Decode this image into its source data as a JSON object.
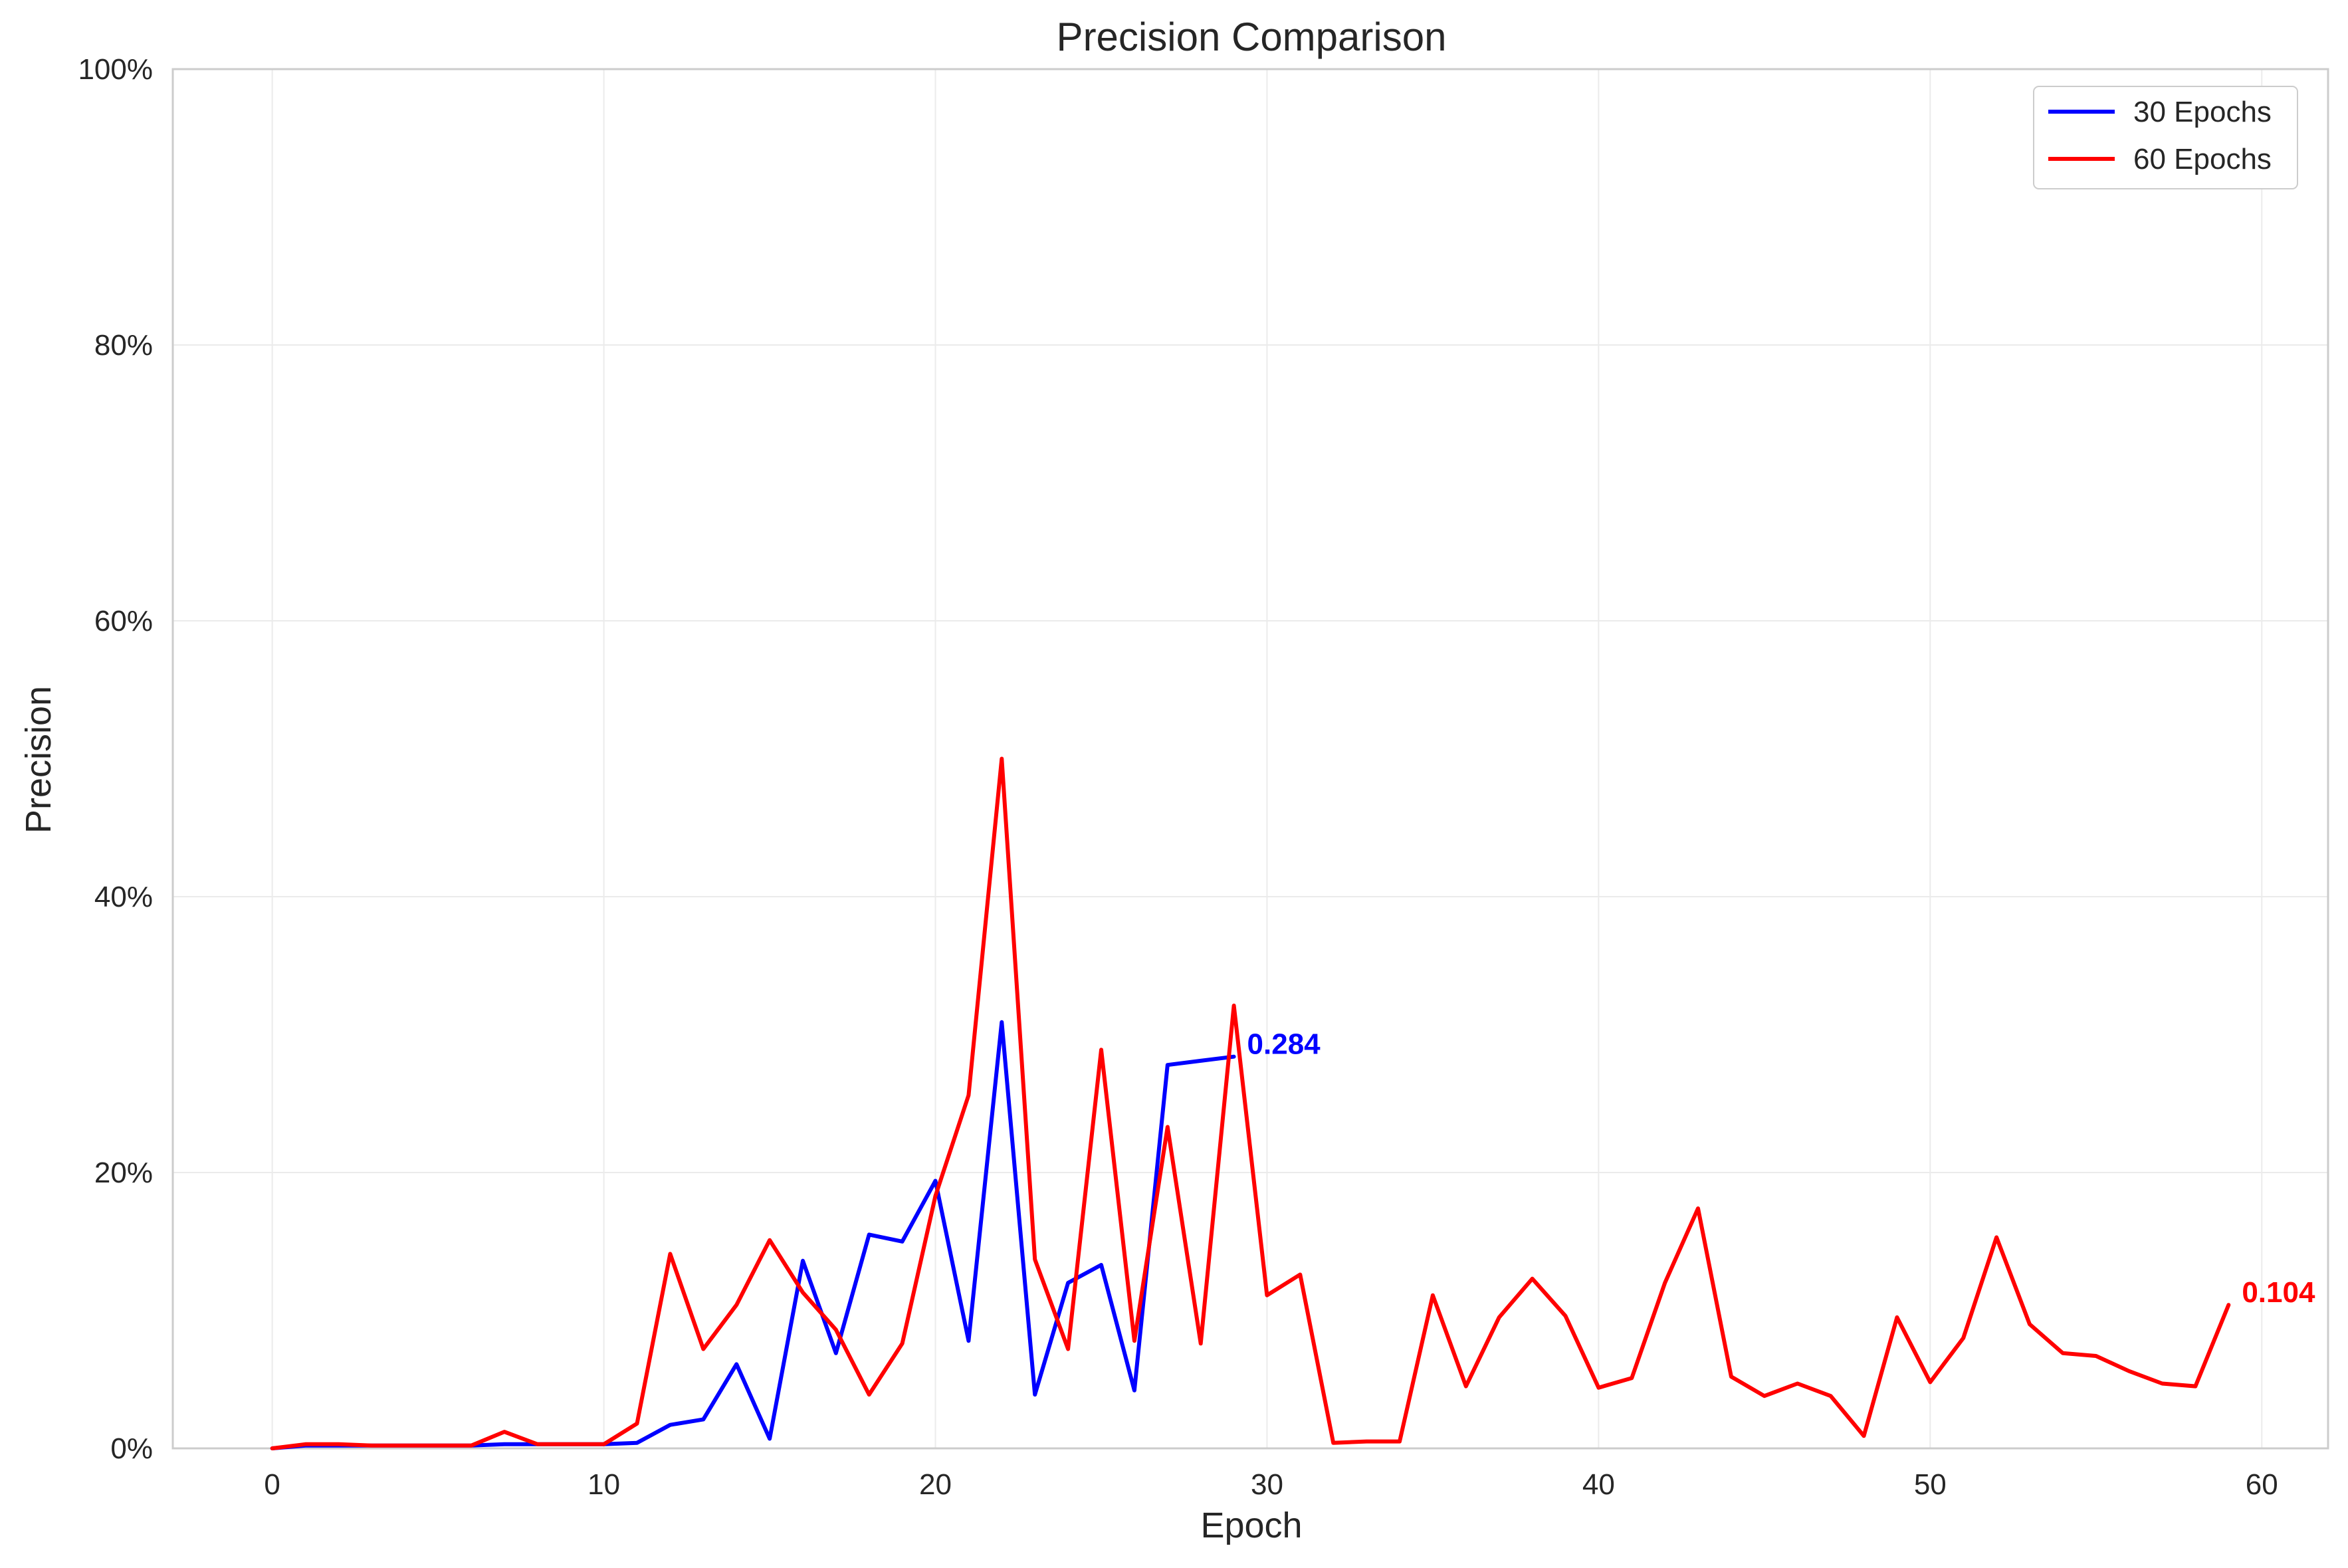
{
  "chart_data": {
    "type": "line",
    "title": "Precision Comparison",
    "xlabel": "Epoch",
    "ylabel": "Precision",
    "xlim": [
      -3,
      62
    ],
    "ylim": [
      0,
      1
    ],
    "x_ticks": [
      0,
      10,
      20,
      30,
      40,
      50,
      60
    ],
    "x_tick_labels": [
      "0",
      "10",
      "20",
      "30",
      "40",
      "50",
      "60"
    ],
    "y_ticks": [
      0,
      0.2,
      0.4,
      0.6,
      0.8,
      1.0
    ],
    "y_tick_labels": [
      "0%",
      "20%",
      "40%",
      "60%",
      "80%",
      "100%"
    ],
    "grid": true,
    "legend_position": "top-right",
    "series": [
      {
        "name": "30 Epochs",
        "color": "#0000ff",
        "x": [
          0,
          1,
          2,
          3,
          4,
          5,
          6,
          7,
          8,
          9,
          10,
          11,
          12,
          13,
          14,
          15,
          16,
          17,
          18,
          19,
          20,
          21,
          22,
          23,
          24,
          25,
          26,
          27,
          28,
          29
        ],
        "values": [
          0.0,
          0.002,
          0.002,
          0.002,
          0.002,
          0.002,
          0.002,
          0.003,
          0.003,
          0.003,
          0.003,
          0.004,
          0.017,
          0.021,
          0.061,
          0.007,
          0.136,
          0.069,
          0.155,
          0.15,
          0.194,
          0.078,
          0.309,
          0.039,
          0.12,
          0.133,
          0.042,
          0.278,
          0.281,
          0.284
        ],
        "end_label": "0.284"
      },
      {
        "name": "60 Epochs",
        "color": "#ff0000",
        "x": [
          0,
          1,
          2,
          3,
          4,
          5,
          6,
          7,
          8,
          9,
          10,
          11,
          12,
          13,
          14,
          15,
          16,
          17,
          18,
          19,
          20,
          21,
          22,
          23,
          24,
          25,
          26,
          27,
          28,
          29,
          30,
          31,
          32,
          33,
          34,
          35,
          36,
          37,
          38,
          39,
          40,
          41,
          42,
          43,
          44,
          45,
          46,
          47,
          48,
          49,
          50,
          51,
          52,
          53,
          54,
          55,
          56,
          57,
          58,
          59
        ],
        "values": [
          0.0,
          0.003,
          0.003,
          0.002,
          0.002,
          0.002,
          0.002,
          0.012,
          0.003,
          0.003,
          0.003,
          0.018,
          0.141,
          0.072,
          0.104,
          0.151,
          0.113,
          0.086,
          0.039,
          0.076,
          0.183,
          0.256,
          0.5,
          0.137,
          0.072,
          0.289,
          0.078,
          0.233,
          0.076,
          0.321,
          0.111,
          0.126,
          0.004,
          0.005,
          0.005,
          0.111,
          0.045,
          0.095,
          0.123,
          0.096,
          0.044,
          0.051,
          0.12,
          0.174,
          0.052,
          0.038,
          0.047,
          0.038,
          0.009,
          0.095,
          0.048,
          0.08,
          0.153,
          0.09,
          0.069,
          0.067,
          0.056,
          0.047,
          0.045,
          0.104
        ],
        "end_label": "0.104"
      }
    ]
  }
}
